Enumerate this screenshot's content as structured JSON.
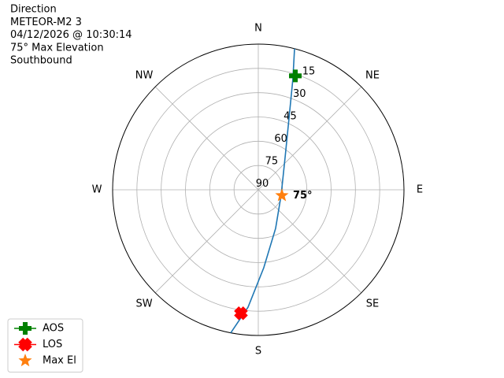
{
  "chart_data": {
    "type": "polar",
    "title_lines": [
      "Direction",
      "METEOR-M2 3",
      "04/12/2026 @ 10:30:14",
      "75° Max Elevation",
      "Southbound"
    ],
    "xlim": [
      0,
      360
    ],
    "xticks": [
      {
        "value": 0,
        "label": "N"
      },
      {
        "value": 45,
        "label": "NE"
      },
      {
        "value": 90,
        "label": "E"
      },
      {
        "value": 135,
        "label": "SE"
      },
      {
        "value": 180,
        "label": "S"
      },
      {
        "value": 225,
        "label": "SW"
      },
      {
        "value": 270,
        "label": "W"
      },
      {
        "value": 315,
        "label": "NW"
      }
    ],
    "ylim": [
      90,
      0
    ],
    "yticks": [
      90,
      75,
      60,
      45,
      30,
      15
    ],
    "grid": true,
    "legend": "lower left",
    "series": [
      {
        "color": "#1f77b4",
        "x": [
          14.4,
          17.3,
          23.2,
          39.7,
          103.6,
          155.8,
          176,
          185,
          190.9
        ],
        "values": [
          0,
          18.1,
          41.8,
          64.1,
          75.5,
          63.9,
          41.7,
          17.2,
          0
        ]
      },
      {
        "name": "AOS",
        "color": "green",
        "marker": "plus",
        "x": [
          18
        ],
        "values": [
          16
        ]
      },
      {
        "name": "LOS",
        "color": "red",
        "marker": "x",
        "x": [
          188
        ],
        "values": [
          13
        ]
      },
      {
        "name": "Max El",
        "color": "#ff7f0e",
        "marker": "star",
        "x": [
          103.6
        ],
        "values": [
          75
        ],
        "value_labels": [
          "75°"
        ]
      }
    ]
  }
}
